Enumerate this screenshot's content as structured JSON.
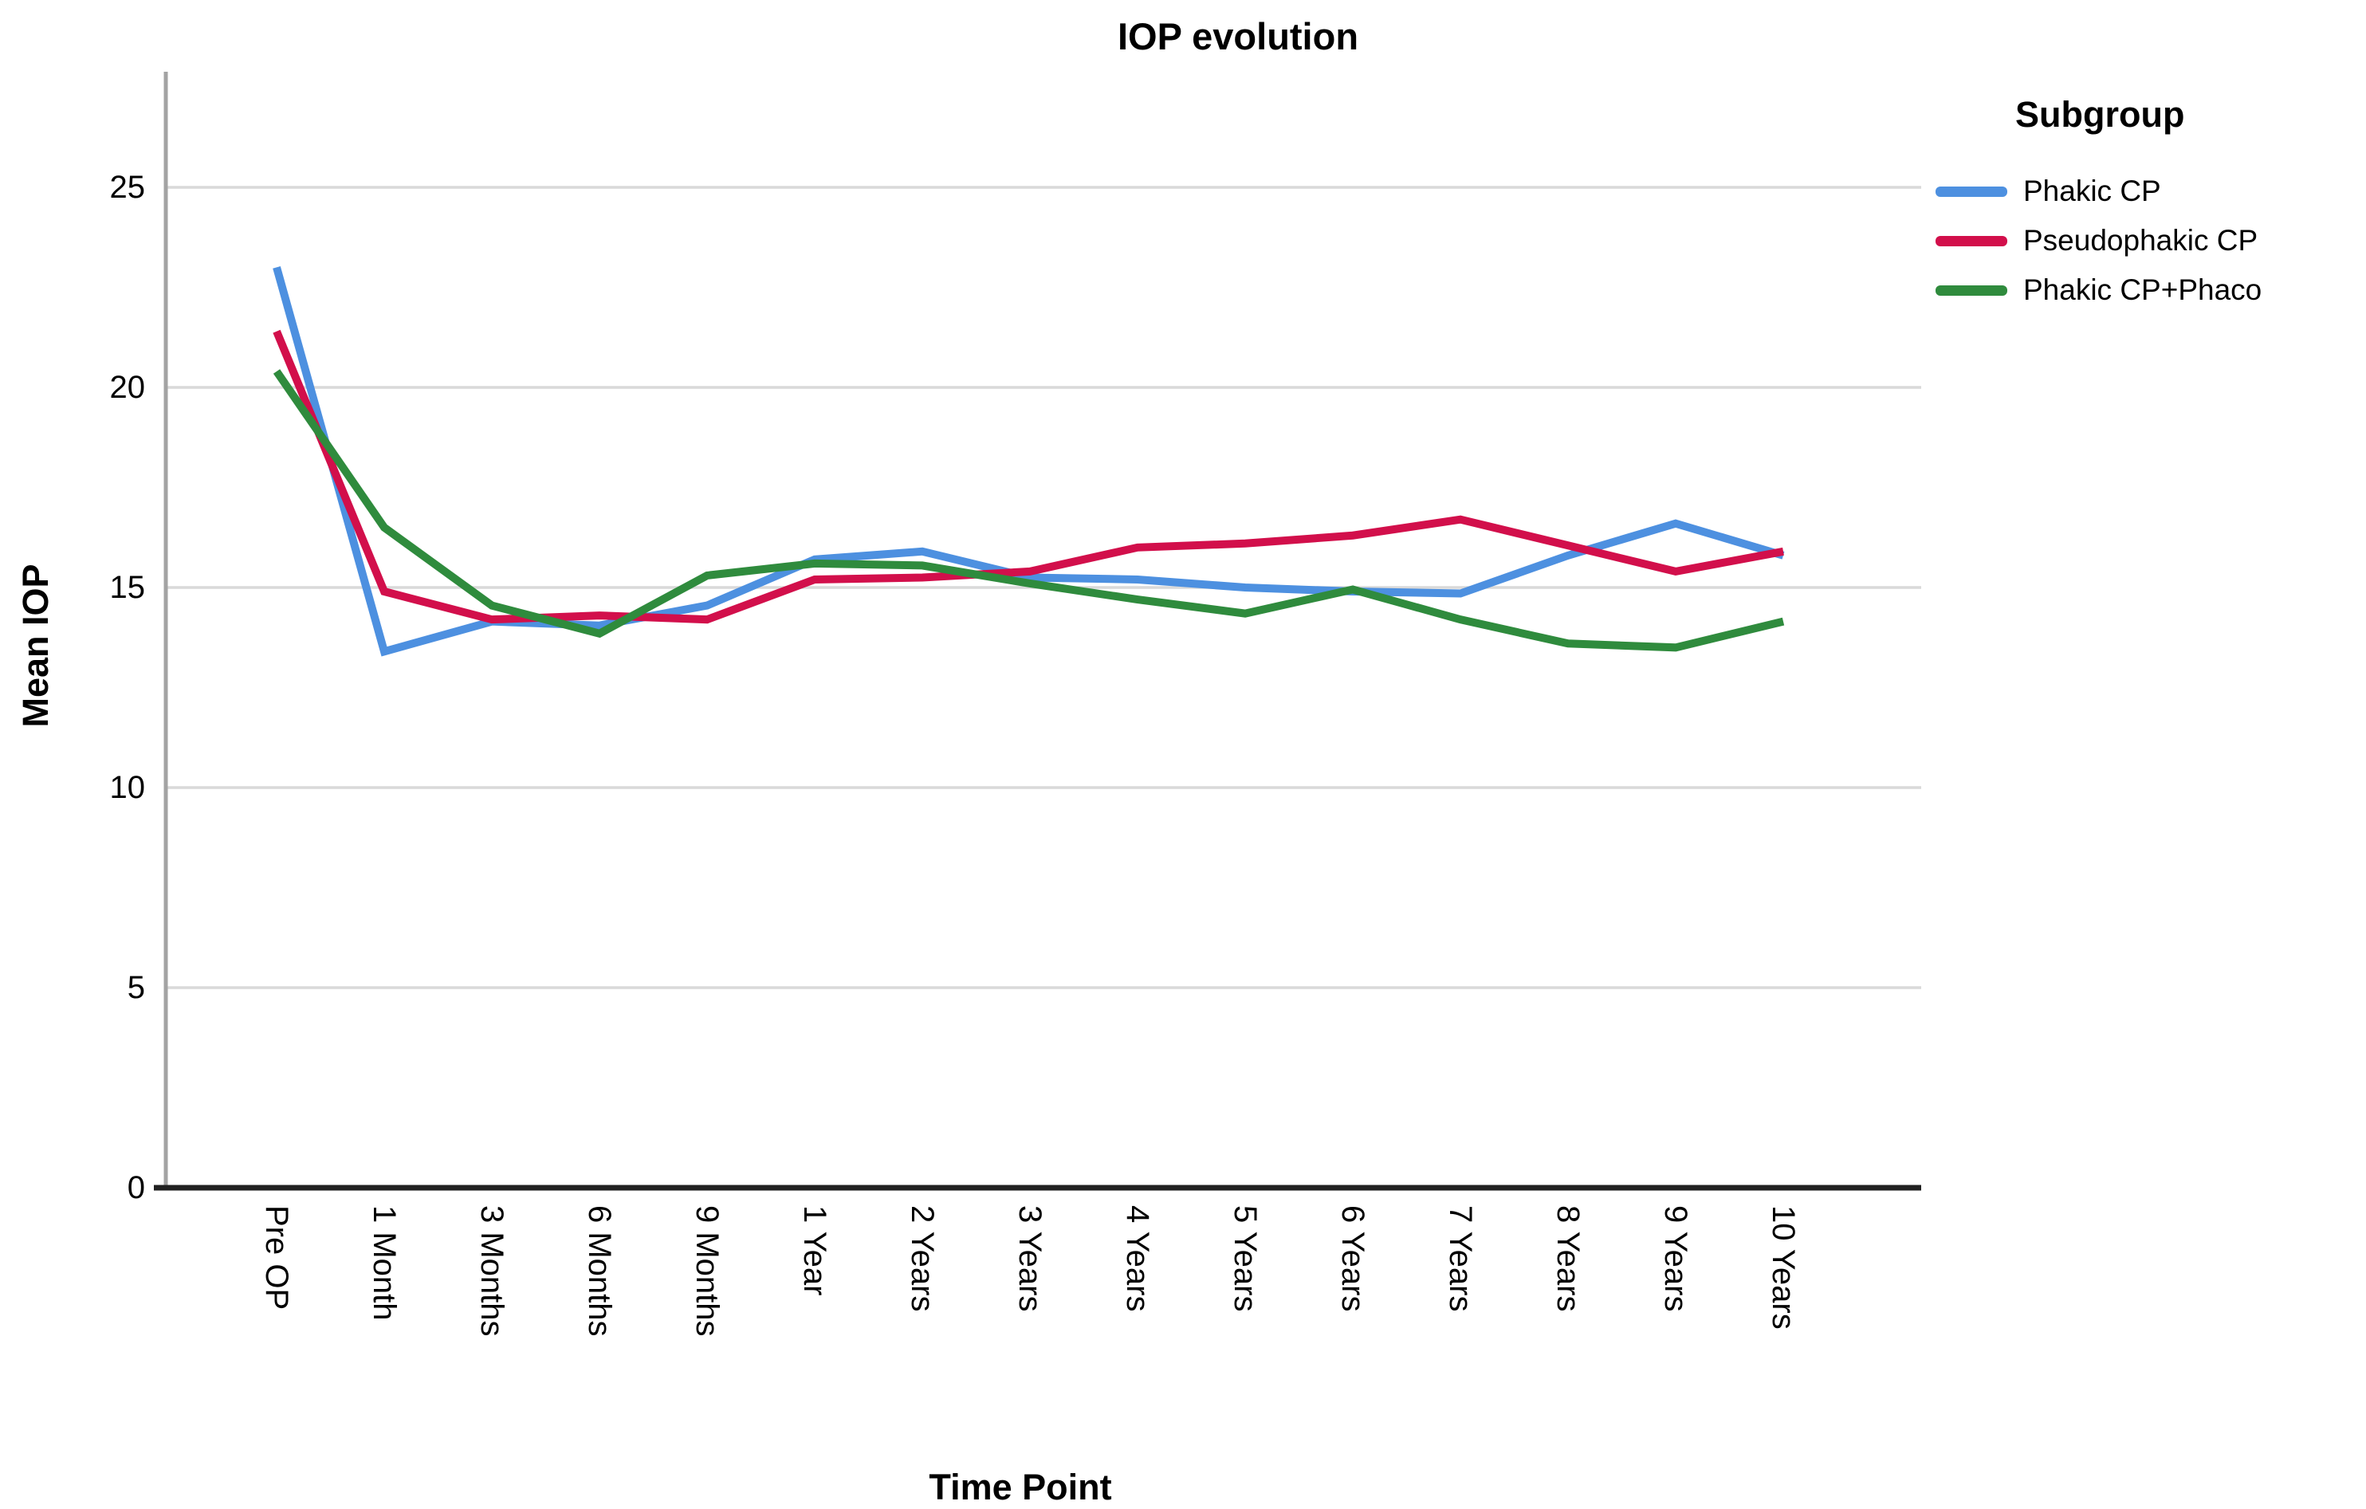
{
  "chart_data": {
    "type": "line",
    "title": "IOP evolution",
    "xlabel": "Time Point",
    "ylabel": "Mean IOP",
    "legend_title": "Subgroup",
    "legend_position": "right",
    "grid": true,
    "categories": [
      "Pre OP",
      "1 Month",
      "3 Months",
      "6 Months",
      "9 Months",
      "1 Year",
      "2 Years",
      "3 Years",
      "4 Years",
      "5 Years",
      "6 Years",
      "7 Years",
      "8 Years",
      "9 Years",
      "10 Years"
    ],
    "series": [
      {
        "name": "Phakic CP",
        "color": "#4D90E0",
        "values": [
          23.0,
          13.4,
          14.15,
          14.05,
          14.55,
          15.7,
          15.9,
          15.25,
          15.2,
          15.0,
          14.9,
          14.85,
          15.8,
          16.6,
          15.8
        ]
      },
      {
        "name": "Pseudophakic CP",
        "color": "#D20F4B",
        "values": [
          21.4,
          14.9,
          14.2,
          14.3,
          14.2,
          15.2,
          15.25,
          15.4,
          16.0,
          16.1,
          16.3,
          16.7,
          16.05,
          15.4,
          15.9
        ]
      },
      {
        "name": "Phakic CP+Phaco",
        "color": "#2F8B3D",
        "values": [
          20.4,
          16.5,
          14.55,
          13.85,
          15.3,
          15.6,
          15.55,
          15.1,
          14.7,
          14.35,
          14.95,
          14.2,
          13.6,
          13.5,
          14.15
        ]
      }
    ],
    "yticks": [
      0,
      5,
      10,
      15,
      20,
      25
    ],
    "ylim": [
      0,
      27.9
    ]
  },
  "colors": {
    "background": "#FFFFFF",
    "gridline": "#D9D9D9",
    "y_axis": "#A3A3A3",
    "x_axis": "#212121",
    "text": "#000000"
  }
}
